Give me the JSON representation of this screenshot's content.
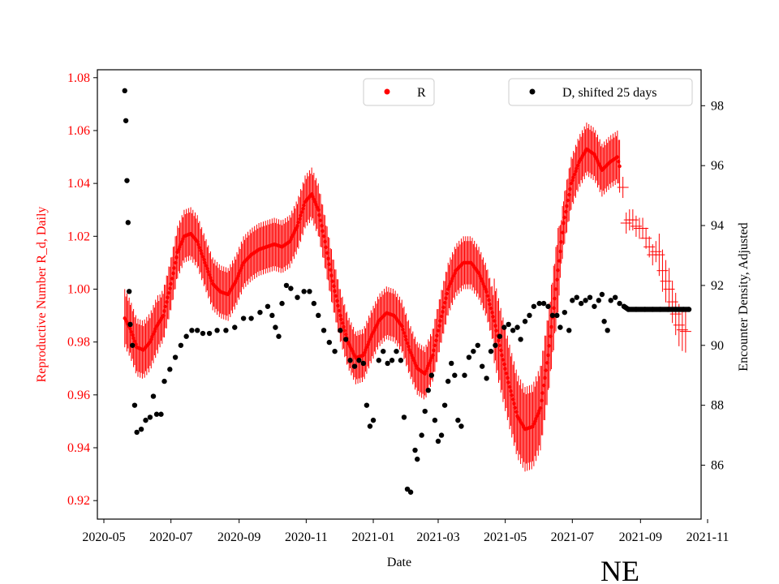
{
  "chart_data": {
    "type": "scatter",
    "xlabel": "Date",
    "ylabel_left": "Reproductive Number R_d, Daily",
    "ylabel_right": "Encounter Density, Adjusted",
    "region_label": "NE",
    "x_range": [
      "2020-05-01",
      "2021-11-01"
    ],
    "ylim_left": [
      0.913,
      1.083
    ],
    "ylim_right": [
      84.2,
      99.2
    ],
    "x_ticks": [
      "2020-05",
      "2020-07",
      "2020-09",
      "2020-11",
      "2021-01",
      "2021-03",
      "2021-05",
      "2021-07",
      "2021-09",
      "2021-11"
    ],
    "y_ticks_left": [
      "0.92",
      "0.94",
      "0.96",
      "0.98",
      "1.00",
      "1.02",
      "1.04",
      "1.06",
      "1.08"
    ],
    "y_ticks_right": [
      "86",
      "88",
      "90",
      "92",
      "94",
      "96",
      "98"
    ],
    "legend_left": {
      "label": "R",
      "color": "#ff0000",
      "position": "top-center"
    },
    "legend_right": {
      "label": "D, shifted 25 days",
      "color": "#000000",
      "position": "top-right"
    },
    "series": [
      {
        "name": "R",
        "axis": "left",
        "color": "#ff0000",
        "points": [
          [
            "2020-05-20",
            0.989
          ],
          [
            "2020-05-25",
            0.985
          ],
          [
            "2020-05-31",
            0.978
          ],
          [
            "2020-06-06",
            0.977
          ],
          [
            "2020-06-12",
            0.98
          ],
          [
            "2020-06-18",
            0.986
          ],
          [
            "2020-06-24",
            0.99
          ],
          [
            "2020-07-01",
            1.002
          ],
          [
            "2020-07-07",
            1.014
          ],
          [
            "2020-07-13",
            1.02
          ],
          [
            "2020-07-19",
            1.021
          ],
          [
            "2020-07-25",
            1.018
          ],
          [
            "2020-08-01",
            1.01
          ],
          [
            "2020-08-08",
            1.002
          ],
          [
            "2020-08-15",
            0.999
          ],
          [
            "2020-08-22",
            0.998
          ],
          [
            "2020-08-29",
            1.003
          ],
          [
            "2020-09-05",
            1.01
          ],
          [
            "2020-09-12",
            1.013
          ],
          [
            "2020-09-19",
            1.015
          ],
          [
            "2020-09-26",
            1.016
          ],
          [
            "2020-10-03",
            1.017
          ],
          [
            "2020-10-10",
            1.016
          ],
          [
            "2020-10-17",
            1.018
          ],
          [
            "2020-10-24",
            1.024
          ],
          [
            "2020-10-31",
            1.033
          ],
          [
            "2020-11-06",
            1.036
          ],
          [
            "2020-11-12",
            1.03
          ],
          [
            "2020-11-18",
            1.018
          ],
          [
            "2020-11-25",
            1.003
          ],
          [
            "2020-12-02",
            0.99
          ],
          [
            "2020-12-09",
            0.98
          ],
          [
            "2020-12-16",
            0.974
          ],
          [
            "2020-12-23",
            0.975
          ],
          [
            "2020-12-30",
            0.982
          ],
          [
            "2021-01-06",
            0.988
          ],
          [
            "2021-01-13",
            0.991
          ],
          [
            "2021-01-20",
            0.99
          ],
          [
            "2021-01-27",
            0.986
          ],
          [
            "2021-02-03",
            0.977
          ],
          [
            "2021-02-10",
            0.97
          ],
          [
            "2021-02-17",
            0.968
          ],
          [
            "2021-02-24",
            0.975
          ],
          [
            "2021-03-03",
            0.988
          ],
          [
            "2021-03-10",
            1.0
          ],
          [
            "2021-03-17",
            1.007
          ],
          [
            "2021-03-24",
            1.01
          ],
          [
            "2021-03-31",
            1.01
          ],
          [
            "2021-04-07",
            1.006
          ],
          [
            "2021-04-14",
            0.999
          ],
          [
            "2021-04-21",
            0.988
          ],
          [
            "2021-04-28",
            0.975
          ],
          [
            "2021-05-05",
            0.963
          ],
          [
            "2021-05-12",
            0.952
          ],
          [
            "2021-05-19",
            0.947
          ],
          [
            "2021-05-26",
            0.948
          ],
          [
            "2021-06-02",
            0.955
          ],
          [
            "2021-06-09",
            0.975
          ],
          [
            "2021-06-16",
            1.0
          ],
          [
            "2021-06-23",
            1.025
          ],
          [
            "2021-06-30",
            1.04
          ],
          [
            "2021-07-07",
            1.048
          ],
          [
            "2021-07-14",
            1.053
          ],
          [
            "2021-07-21",
            1.051
          ],
          [
            "2021-07-28",
            1.045
          ],
          [
            "2021-08-04",
            1.048
          ],
          [
            "2021-08-11",
            1.05
          ],
          [
            "2021-08-15",
            1.043
          ],
          [
            "2021-08-19",
            1.025
          ],
          [
            "2021-08-24",
            1.027
          ],
          [
            "2021-08-29",
            1.023
          ],
          [
            "2021-09-03",
            1.023
          ],
          [
            "2021-09-07",
            1.018
          ],
          [
            "2021-09-12",
            1.013
          ],
          [
            "2021-09-17",
            1.015
          ],
          [
            "2021-09-22",
            1.005
          ],
          [
            "2021-09-27",
            1.0
          ],
          [
            "2021-10-02",
            0.992
          ],
          [
            "2021-10-07",
            0.985
          ],
          [
            "2021-10-12",
            0.984
          ]
        ]
      },
      {
        "name": "D, shifted 25 days",
        "axis": "right",
        "color": "#000000",
        "points": [
          [
            "2020-05-20",
            98.5
          ],
          [
            "2020-05-21",
            97.5
          ],
          [
            "2020-05-22",
            95.5
          ],
          [
            "2020-05-23",
            94.1
          ],
          [
            "2020-05-24",
            91.8
          ],
          [
            "2020-05-25",
            90.7
          ],
          [
            "2020-05-27",
            90.0
          ],
          [
            "2020-05-29",
            88.0
          ],
          [
            "2020-05-31",
            87.1
          ],
          [
            "2020-06-04",
            87.2
          ],
          [
            "2020-06-08",
            87.5
          ],
          [
            "2020-06-12",
            87.6
          ],
          [
            "2020-06-15",
            88.3
          ],
          [
            "2020-06-18",
            87.7
          ],
          [
            "2020-06-22",
            87.7
          ],
          [
            "2020-06-25",
            88.8
          ],
          [
            "2020-06-30",
            89.2
          ],
          [
            "2020-07-05",
            89.6
          ],
          [
            "2020-07-10",
            90.0
          ],
          [
            "2020-07-15",
            90.3
          ],
          [
            "2020-07-20",
            90.5
          ],
          [
            "2020-07-25",
            90.5
          ],
          [
            "2020-07-30",
            90.4
          ],
          [
            "2020-08-05",
            90.4
          ],
          [
            "2020-08-12",
            90.5
          ],
          [
            "2020-08-20",
            90.5
          ],
          [
            "2020-08-28",
            90.6
          ],
          [
            "2020-09-05",
            90.9
          ],
          [
            "2020-09-12",
            90.9
          ],
          [
            "2020-09-20",
            91.1
          ],
          [
            "2020-09-27",
            91.3
          ],
          [
            "2020-10-01",
            91.0
          ],
          [
            "2020-10-04",
            90.6
          ],
          [
            "2020-10-07",
            90.3
          ],
          [
            "2020-10-10",
            91.4
          ],
          [
            "2020-10-14",
            92.0
          ],
          [
            "2020-10-18",
            91.9
          ],
          [
            "2020-10-24",
            91.6
          ],
          [
            "2020-10-30",
            91.8
          ],
          [
            "2020-11-04",
            91.8
          ],
          [
            "2020-11-08",
            91.4
          ],
          [
            "2020-11-12",
            91.0
          ],
          [
            "2020-11-17",
            90.5
          ],
          [
            "2020-11-22",
            90.1
          ],
          [
            "2020-11-27",
            89.8
          ],
          [
            "2020-12-02",
            90.5
          ],
          [
            "2020-12-07",
            90.2
          ],
          [
            "2020-12-11",
            89.5
          ],
          [
            "2020-12-15",
            89.3
          ],
          [
            "2020-12-19",
            89.5
          ],
          [
            "2020-12-23",
            89.4
          ],
          [
            "2020-12-26",
            88.0
          ],
          [
            "2020-12-29",
            87.3
          ],
          [
            "2021-01-01",
            87.5
          ],
          [
            "2021-01-06",
            89.5
          ],
          [
            "2021-01-10",
            89.8
          ],
          [
            "2021-01-14",
            89.4
          ],
          [
            "2021-01-18",
            89.5
          ],
          [
            "2021-01-22",
            89.8
          ],
          [
            "2021-01-26",
            89.5
          ],
          [
            "2021-01-29",
            87.6
          ],
          [
            "2021-02-01",
            85.2
          ],
          [
            "2021-02-04",
            85.1
          ],
          [
            "2021-02-08",
            86.5
          ],
          [
            "2021-02-10",
            86.2
          ],
          [
            "2021-02-14",
            87.0
          ],
          [
            "2021-02-17",
            87.8
          ],
          [
            "2021-02-20",
            88.5
          ],
          [
            "2021-02-23",
            89.0
          ],
          [
            "2021-02-26",
            87.5
          ],
          [
            "2021-03-01",
            86.8
          ],
          [
            "2021-03-04",
            87.0
          ],
          [
            "2021-03-07",
            88.0
          ],
          [
            "2021-03-10",
            88.8
          ],
          [
            "2021-03-13",
            89.4
          ],
          [
            "2021-03-16",
            89.0
          ],
          [
            "2021-03-19",
            87.5
          ],
          [
            "2021-03-22",
            87.3
          ],
          [
            "2021-03-25",
            89.0
          ],
          [
            "2021-03-29",
            89.6
          ],
          [
            "2021-04-02",
            89.8
          ],
          [
            "2021-04-06",
            90.0
          ],
          [
            "2021-04-10",
            89.3
          ],
          [
            "2021-04-14",
            88.9
          ],
          [
            "2021-04-18",
            89.8
          ],
          [
            "2021-04-22",
            90.0
          ],
          [
            "2021-04-26",
            90.3
          ],
          [
            "2021-04-30",
            90.6
          ],
          [
            "2021-05-04",
            90.7
          ],
          [
            "2021-05-08",
            90.5
          ],
          [
            "2021-05-12",
            90.6
          ],
          [
            "2021-05-15",
            90.2
          ],
          [
            "2021-05-19",
            90.8
          ],
          [
            "2021-05-23",
            91.0
          ],
          [
            "2021-05-27",
            91.3
          ],
          [
            "2021-06-01",
            91.4
          ],
          [
            "2021-06-05",
            91.4
          ],
          [
            "2021-06-09",
            91.3
          ],
          [
            "2021-06-13",
            91.0
          ],
          [
            "2021-06-17",
            91.0
          ],
          [
            "2021-06-20",
            90.6
          ],
          [
            "2021-06-24",
            91.1
          ],
          [
            "2021-06-28",
            90.5
          ],
          [
            "2021-07-01",
            91.5
          ],
          [
            "2021-07-05",
            91.6
          ],
          [
            "2021-07-09",
            91.4
          ],
          [
            "2021-07-13",
            91.5
          ],
          [
            "2021-07-17",
            91.6
          ],
          [
            "2021-07-21",
            91.3
          ],
          [
            "2021-07-25",
            91.5
          ],
          [
            "2021-07-28",
            91.7
          ],
          [
            "2021-07-30",
            90.8
          ],
          [
            "2021-08-02",
            90.5
          ],
          [
            "2021-08-05",
            91.5
          ],
          [
            "2021-08-09",
            91.6
          ],
          [
            "2021-08-13",
            91.4
          ],
          [
            "2021-08-17",
            91.3
          ],
          [
            "2021-08-21",
            91.2
          ],
          [
            "2021-08-28",
            91.2
          ],
          [
            "2021-09-05",
            91.2
          ],
          [
            "2021-09-12",
            91.2
          ],
          [
            "2021-09-19",
            91.2
          ],
          [
            "2021-09-26",
            91.2
          ],
          [
            "2021-10-03",
            91.2
          ],
          [
            "2021-10-10",
            91.2
          ],
          [
            "2021-10-15",
            91.2
          ]
        ]
      }
    ]
  }
}
